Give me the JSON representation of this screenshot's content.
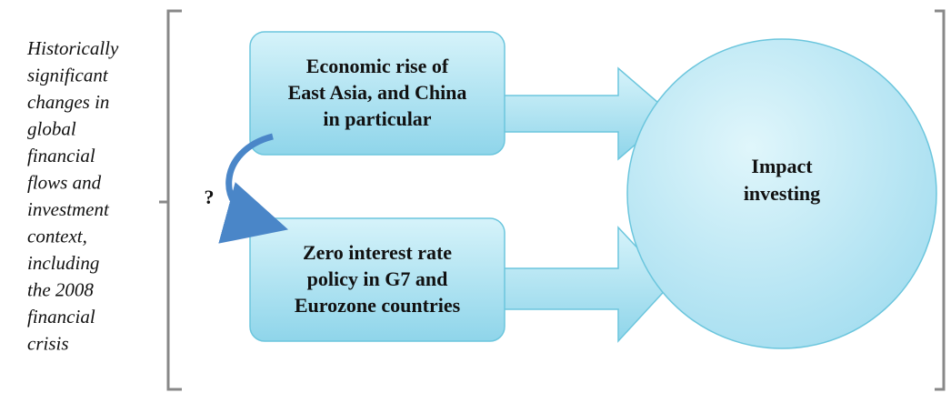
{
  "side_label": {
    "lines": [
      "Historically",
      "significant",
      "changes in",
      "global",
      "financial",
      "flows and",
      "investment",
      "context,",
      "including",
      "the 2008",
      "financial",
      "crisis"
    ]
  },
  "nodes": [
    {
      "lines": [
        "Economic rise of",
        "East Asia, and China",
        "in particular"
      ]
    },
    {
      "lines": [
        "Zero interest rate",
        "policy in G7 and",
        "Eurozone countries"
      ]
    },
    {
      "lines": [
        "Impact",
        "investing"
      ]
    }
  ],
  "link_label": "?"
}
